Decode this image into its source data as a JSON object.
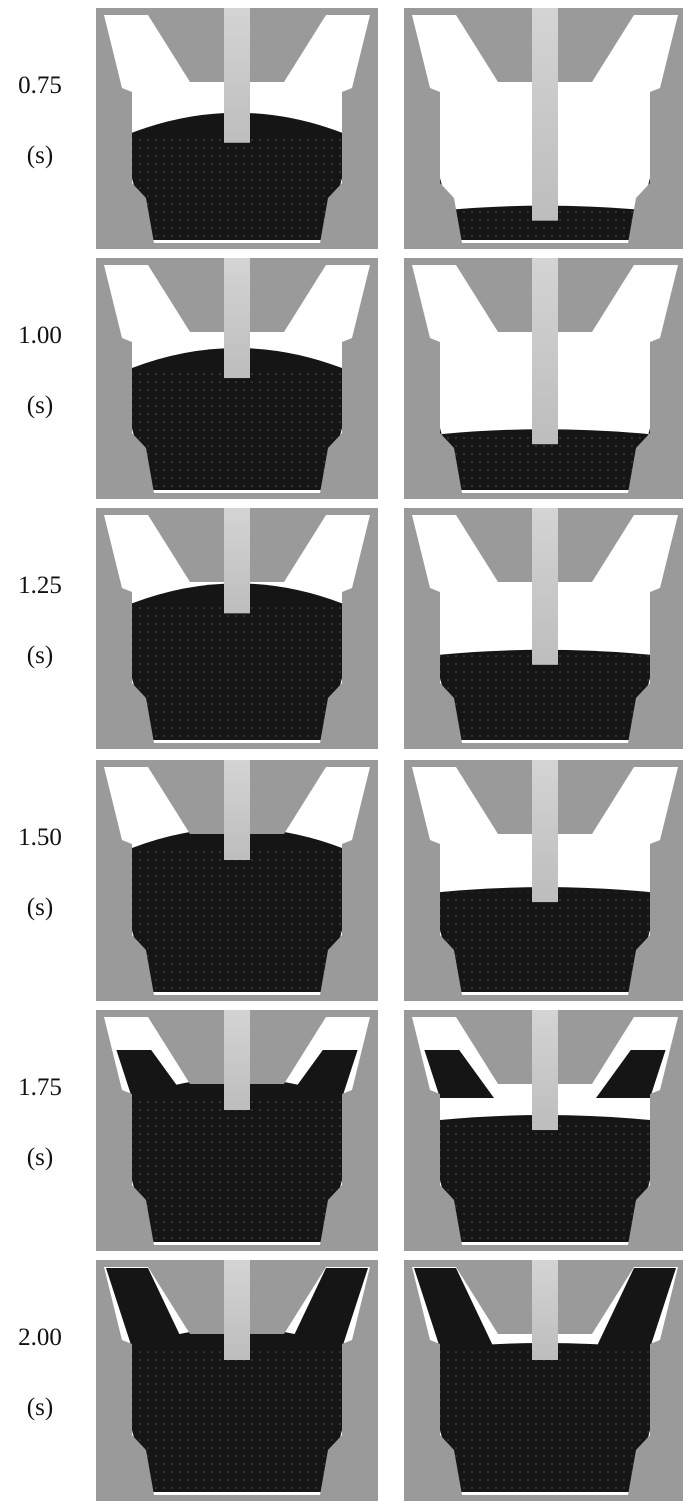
{
  "rows": [
    {
      "time": "0.75",
      "unit": "(s)"
    },
    {
      "time": "1.00",
      "unit": "(s)"
    },
    {
      "time": "1.25",
      "unit": "(s)"
    },
    {
      "time": "1.50",
      "unit": "(s)"
    },
    {
      "time": "1.75",
      "unit": "(s)"
    },
    {
      "time": "2.00",
      "unit": "(s)"
    }
  ]
}
